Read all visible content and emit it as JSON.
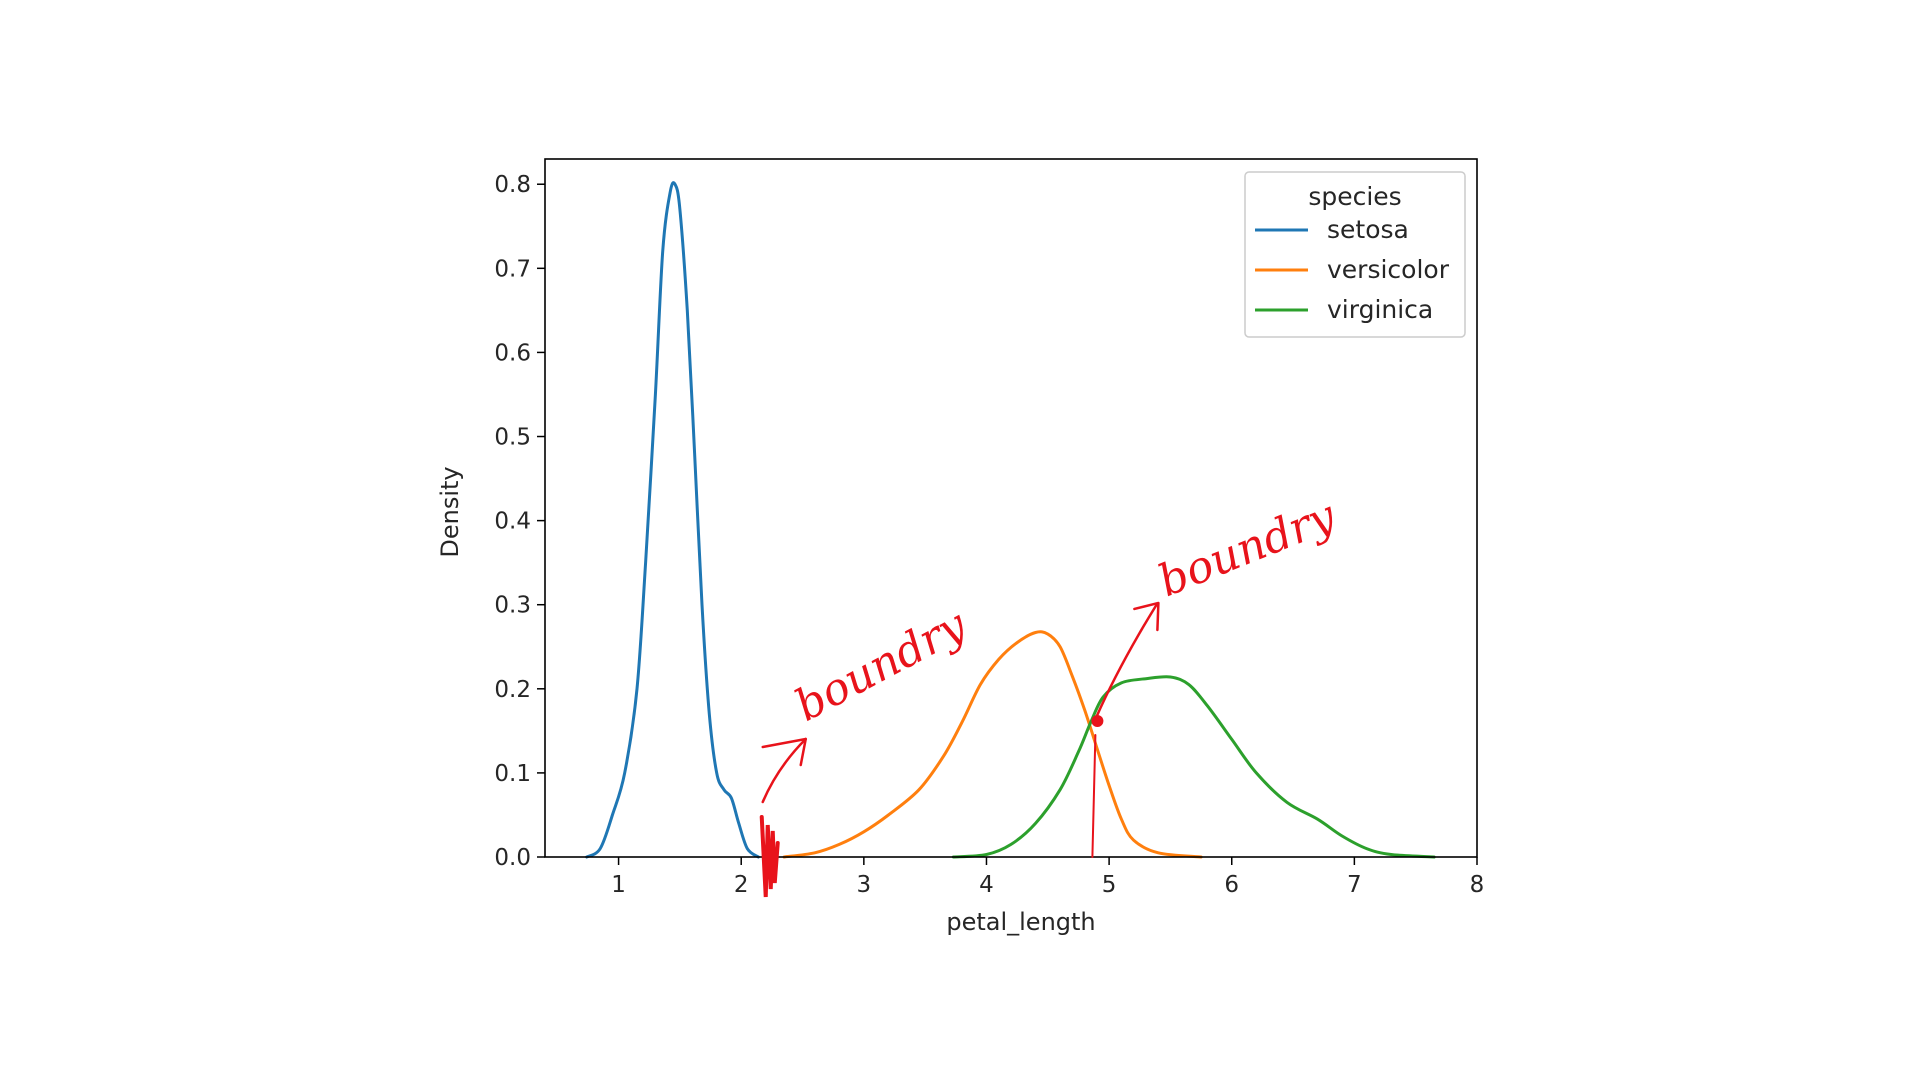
{
  "chart_data": {
    "type": "line",
    "xlabel": "petal_length",
    "ylabel": "Density",
    "xlim": [
      0.4,
      8
    ],
    "ylim": [
      0,
      0.83
    ],
    "x_ticks": [
      1,
      2,
      3,
      4,
      5,
      6,
      7,
      8
    ],
    "y_ticks": [
      0.0,
      0.1,
      0.2,
      0.3,
      0.4,
      0.5,
      0.6,
      0.7,
      0.8
    ],
    "grid": false,
    "legend": {
      "title": "species",
      "placement": "top-right"
    },
    "series": [
      {
        "name": "setosa",
        "color": "#1f77b4",
        "points": [
          [
            0.74,
            0.0
          ],
          [
            0.85,
            0.01
          ],
          [
            0.95,
            0.05
          ],
          [
            1.05,
            0.1
          ],
          [
            1.15,
            0.2
          ],
          [
            1.22,
            0.35
          ],
          [
            1.3,
            0.55
          ],
          [
            1.36,
            0.72
          ],
          [
            1.42,
            0.79
          ],
          [
            1.46,
            0.8
          ],
          [
            1.5,
            0.77
          ],
          [
            1.56,
            0.65
          ],
          [
            1.62,
            0.48
          ],
          [
            1.68,
            0.3
          ],
          [
            1.74,
            0.17
          ],
          [
            1.8,
            0.1
          ],
          [
            1.86,
            0.08
          ],
          [
            1.92,
            0.07
          ],
          [
            1.98,
            0.04
          ],
          [
            2.05,
            0.01
          ],
          [
            2.14,
            0.0
          ]
        ]
      },
      {
        "name": "versicolor",
        "color": "#ff7f0e",
        "points": [
          [
            2.35,
            0.0
          ],
          [
            2.6,
            0.005
          ],
          [
            2.8,
            0.015
          ],
          [
            3.0,
            0.03
          ],
          [
            3.2,
            0.05
          ],
          [
            3.45,
            0.08
          ],
          [
            3.65,
            0.12
          ],
          [
            3.8,
            0.16
          ],
          [
            3.95,
            0.205
          ],
          [
            4.1,
            0.235
          ],
          [
            4.25,
            0.255
          ],
          [
            4.4,
            0.267
          ],
          [
            4.5,
            0.265
          ],
          [
            4.6,
            0.25
          ],
          [
            4.7,
            0.215
          ],
          [
            4.8,
            0.175
          ],
          [
            4.9,
            0.13
          ],
          [
            5.0,
            0.085
          ],
          [
            5.1,
            0.045
          ],
          [
            5.2,
            0.02
          ],
          [
            5.4,
            0.005
          ],
          [
            5.75,
            0.0
          ]
        ]
      },
      {
        "name": "virginica",
        "color": "#2ca02c",
        "points": [
          [
            3.73,
            0.0
          ],
          [
            4.0,
            0.003
          ],
          [
            4.2,
            0.015
          ],
          [
            4.4,
            0.04
          ],
          [
            4.6,
            0.08
          ],
          [
            4.75,
            0.125
          ],
          [
            4.85,
            0.16
          ],
          [
            4.95,
            0.19
          ],
          [
            5.1,
            0.207
          ],
          [
            5.3,
            0.212
          ],
          [
            5.5,
            0.214
          ],
          [
            5.65,
            0.205
          ],
          [
            5.8,
            0.18
          ],
          [
            6.0,
            0.14
          ],
          [
            6.2,
            0.1
          ],
          [
            6.45,
            0.065
          ],
          [
            6.7,
            0.045
          ],
          [
            6.9,
            0.025
          ],
          [
            7.1,
            0.01
          ],
          [
            7.3,
            0.003
          ],
          [
            7.65,
            0.0
          ]
        ]
      }
    ],
    "annotations": [
      {
        "text": "boundry",
        "target_x": 2.2,
        "target_y": 0.0,
        "color": "#e8131b"
      },
      {
        "text": "boundry",
        "target_x": 4.88,
        "target_y": 0.157,
        "color": "#e8131b"
      }
    ]
  }
}
